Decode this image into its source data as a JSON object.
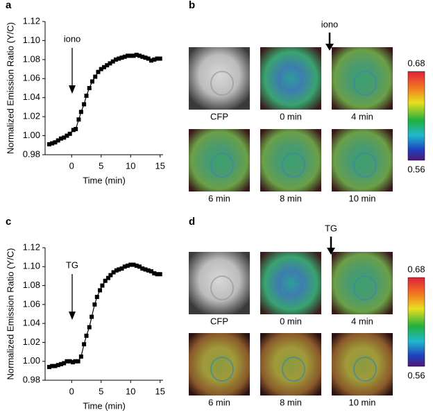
{
  "chart_data": [
    {
      "type": "line",
      "panel": "a",
      "ylabel": "Normalized Emission Ratio (Y/C)",
      "xlabel": "Time (min)",
      "annotation": "iono",
      "xlim": [
        -4.5,
        15.5
      ],
      "xticks": [
        0,
        5,
        10,
        15
      ],
      "ylim": [
        0.98,
        1.12
      ],
      "yticks": [
        {
          "value": 0.98,
          "label": "0.98"
        },
        {
          "value": 1.0,
          "label": "1.00"
        },
        {
          "value": 1.02,
          "label": "1.02"
        },
        {
          "value": 1.04,
          "label": "1.04"
        },
        {
          "value": 1.06,
          "label": "1.06"
        },
        {
          "value": 1.08,
          "label": "1.08"
        },
        {
          "value": 1.1,
          "label": "1.10"
        },
        {
          "value": 1.12,
          "label": "1.12"
        }
      ],
      "x": [
        -3.8,
        -3.3,
        -2.8,
        -2.3,
        -1.8,
        -1.3,
        -0.8,
        -0.3,
        0.3,
        0.7,
        1.2,
        1.6,
        2.1,
        2.5,
        3.0,
        3.5,
        4.0,
        4.5,
        5.0,
        5.5,
        6.0,
        6.5,
        7.0,
        7.5,
        8.0,
        8.5,
        9.0,
        9.5,
        10.0,
        10.5,
        11.0,
        11.5,
        12.0,
        12.5,
        13.0,
        13.5,
        14.0,
        14.5,
        15.0
      ],
      "series": [
        {
          "color": "#000000",
          "values": [
            0.991,
            0.992,
            0.993,
            0.995,
            0.997,
            0.998,
            1.0,
            1.002,
            1.006,
            1.007,
            1.017,
            1.025,
            1.033,
            1.042,
            1.05,
            1.057,
            1.062,
            1.067,
            1.07,
            1.072,
            1.074,
            1.076,
            1.078,
            1.08,
            1.081,
            1.082,
            1.083,
            1.084,
            1.084,
            1.084,
            1.085,
            1.084,
            1.083,
            1.082,
            1.081,
            1.079,
            1.08,
            1.081,
            1.081
          ]
        }
      ]
    },
    {
      "type": "line",
      "panel": "c",
      "ylabel": "Normalized Emission Ratio (Y/C)",
      "xlabel": "Time (min)",
      "annotation": "TG",
      "xlim": [
        -4.5,
        15.5
      ],
      "xticks": [
        0,
        5,
        10,
        15
      ],
      "ylim": [
        0.98,
        1.12
      ],
      "yticks": [
        {
          "value": 0.98,
          "label": "0.98"
        },
        {
          "value": 1.0,
          "label": "1.00"
        },
        {
          "value": 1.02,
          "label": "1.02"
        },
        {
          "value": 1.04,
          "label": "1.04"
        },
        {
          "value": 1.06,
          "label": "1.06"
        },
        {
          "value": 1.08,
          "label": "1.08"
        },
        {
          "value": 1.1,
          "label": "1.10"
        },
        {
          "value": 1.12,
          "label": "1.12"
        }
      ],
      "x": [
        -3.8,
        -3.3,
        -2.8,
        -2.3,
        -1.8,
        -1.3,
        -0.8,
        -0.3,
        0.2,
        0.6,
        1.1,
        1.6,
        2.1,
        2.5,
        3.0,
        3.4,
        3.9,
        4.3,
        4.8,
        5.2,
        5.7,
        6.2,
        6.6,
        7.1,
        7.6,
        8.0,
        8.5,
        9.0,
        9.5,
        10.0,
        10.5,
        11.0,
        11.5,
        12.0,
        12.5,
        13.0,
        13.5,
        14.0,
        14.5,
        15.0
      ],
      "series": [
        {
          "color": "#000000",
          "values": [
            0.994,
            0.995,
            0.995,
            0.996,
            0.997,
            0.998,
            1.0,
            1.0,
            0.999,
            1.0,
            1.0,
            1.005,
            1.018,
            1.027,
            1.036,
            1.047,
            1.06,
            1.068,
            1.075,
            1.08,
            1.085,
            1.088,
            1.091,
            1.094,
            1.096,
            1.097,
            1.098,
            1.1,
            1.101,
            1.102,
            1.102,
            1.101,
            1.1,
            1.098,
            1.097,
            1.096,
            1.095,
            1.093,
            1.092,
            1.092
          ]
        }
      ]
    }
  ],
  "image_panels": [
    {
      "panel": "b",
      "marker": "iono",
      "labels": [
        "CFP",
        "0 min",
        "4 min",
        "6 min",
        "8 min",
        "10 min"
      ],
      "colorbar": [
        0.68,
        0.56
      ]
    },
    {
      "panel": "d",
      "marker": "TG",
      "labels": [
        "CFP",
        "0 min",
        "4 min",
        "6 min",
        "8 min",
        "10 min"
      ],
      "colorbar": [
        0.68,
        0.56
      ]
    }
  ]
}
